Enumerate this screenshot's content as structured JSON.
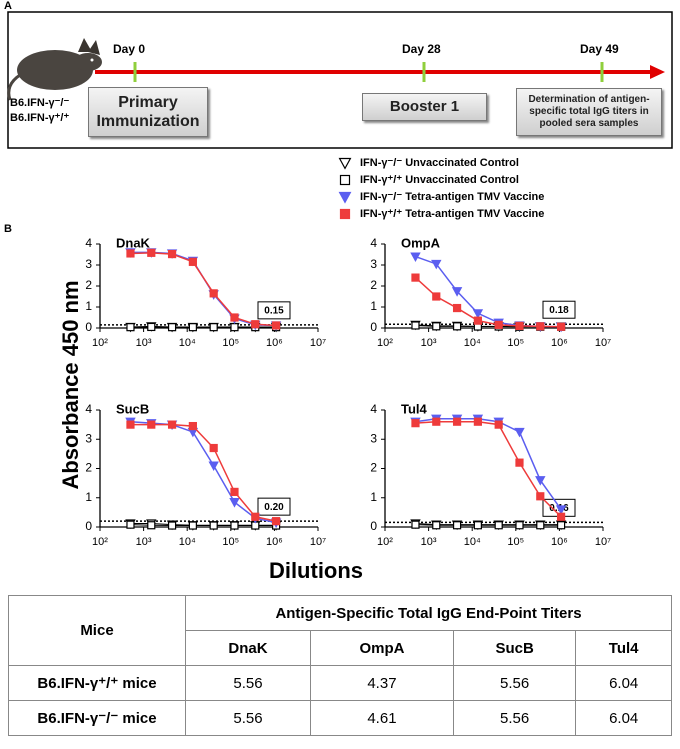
{
  "panel_a": {
    "label": "A",
    "mouse_labels": [
      "B6.IFN-γ⁻/⁻",
      "B6.IFN-γ⁺/⁺"
    ],
    "timepoints": [
      {
        "day": "Day 0",
        "event": "Primary Immunization"
      },
      {
        "day": "Day 28",
        "event": "Booster 1"
      },
      {
        "day": "Day 49",
        "event": "Determination of antigen-specific total IgG titers in pooled sera samples"
      }
    ]
  },
  "panel_b": {
    "label": "B"
  },
  "legend": [
    {
      "name": "IFN-γ⁻/⁻  Unvaccinated Control",
      "color": "#000000",
      "marker": "triangle-down",
      "filled": false
    },
    {
      "name": "IFN-γ⁺/⁺  Unvaccinated Control",
      "color": "#000000",
      "marker": "square",
      "filled": false
    },
    {
      "name": "IFN-γ⁻/⁻  Tetra-antigen TMV Vaccine",
      "color": "#5b5ef0",
      "marker": "triangle-down",
      "filled": true
    },
    {
      "name": "IFN-γ⁺/⁺  Tetra-antigen TMV Vaccine",
      "color": "#ee3b3b",
      "marker": "square",
      "filled": true
    }
  ],
  "ylabel": "Absorbance 450 nm",
  "xlabel": "Dilutions",
  "chart_data": [
    {
      "type": "line",
      "title": "DnaK",
      "xscale": "log",
      "x": [
        500,
        1500,
        4500,
        13500,
        40500,
        121500,
        364500,
        1093500
      ],
      "xlim": [
        100,
        10000000
      ],
      "xticks": [
        {
          "value": 100,
          "label": "10²"
        },
        {
          "value": 1000,
          "label": "10³"
        },
        {
          "value": 10000,
          "label": "10⁴"
        },
        {
          "value": 100000,
          "label": "10⁵"
        },
        {
          "value": 1000000,
          "label": "10⁶"
        },
        {
          "value": 10000000,
          "label": "10⁷"
        }
      ],
      "ylim": [
        0,
        4
      ],
      "yticks": [
        0,
        1,
        2,
        3,
        4
      ],
      "cutoff": {
        "value": 0.15,
        "label": "0.15"
      },
      "series": [
        {
          "values": [
            0.05,
            0.08,
            0.05,
            0.05,
            0.05,
            0.05,
            0.05,
            0.05
          ]
        },
        {
          "values": [
            0.04,
            0.05,
            0.04,
            0.04,
            0.04,
            0.04,
            0.04,
            0.04
          ]
        },
        {
          "values": [
            3.6,
            3.6,
            3.55,
            3.2,
            1.6,
            0.45,
            0.15,
            0.12
          ]
        },
        {
          "values": [
            3.55,
            3.58,
            3.52,
            3.15,
            1.65,
            0.5,
            0.18,
            0.12
          ]
        }
      ]
    },
    {
      "type": "line",
      "title": "OmpA",
      "xscale": "log",
      "x": [
        500,
        1500,
        4500,
        13500,
        40500,
        121500,
        364500,
        1093500
      ],
      "xlim": [
        100,
        10000000
      ],
      "xticks": [
        {
          "value": 100,
          "label": "10²"
        },
        {
          "value": 1000,
          "label": "10³"
        },
        {
          "value": 10000,
          "label": "10⁴"
        },
        {
          "value": 100000,
          "label": "10⁵"
        },
        {
          "value": 1000000,
          "label": "10⁶"
        },
        {
          "value": 10000000,
          "label": "10⁷"
        }
      ],
      "ylim": [
        0,
        4
      ],
      "yticks": [
        0,
        1,
        2,
        3,
        4
      ],
      "cutoff": {
        "value": 0.18,
        "label": "0.18"
      },
      "series": [
        {
          "values": [
            0.15,
            0.1,
            0.1,
            0.08,
            0.08,
            0.07,
            0.07,
            0.07
          ]
        },
        {
          "values": [
            0.12,
            0.08,
            0.08,
            0.07,
            0.07,
            0.06,
            0.06,
            0.06
          ]
        },
        {
          "values": [
            3.4,
            3.05,
            1.75,
            0.7,
            0.25,
            0.12,
            0.08,
            0.06
          ]
        },
        {
          "values": [
            2.4,
            1.5,
            0.95,
            0.35,
            0.15,
            0.1,
            0.08,
            0.06
          ]
        }
      ]
    },
    {
      "type": "line",
      "title": "SucB",
      "xscale": "log",
      "x": [
        500,
        1500,
        4500,
        13500,
        40500,
        121500,
        364500,
        1093500
      ],
      "xlim": [
        100,
        10000000
      ],
      "xticks": [
        {
          "value": 100,
          "label": "10²"
        },
        {
          "value": 1000,
          "label": "10³"
        },
        {
          "value": 10000,
          "label": "10⁴"
        },
        {
          "value": 100000,
          "label": "10⁵"
        },
        {
          "value": 1000000,
          "label": "10⁶"
        },
        {
          "value": 10000000,
          "label": "10⁷"
        }
      ],
      "ylim": [
        0,
        4
      ],
      "yticks": [
        0,
        1,
        2,
        3,
        4
      ],
      "cutoff": {
        "value": 0.2,
        "label": "0.20"
      },
      "series": [
        {
          "values": [
            0.12,
            0.12,
            0.08,
            0.06,
            0.06,
            0.06,
            0.06,
            0.06
          ]
        },
        {
          "values": [
            0.08,
            0.06,
            0.05,
            0.05,
            0.05,
            0.05,
            0.05,
            0.05
          ]
        },
        {
          "values": [
            3.6,
            3.55,
            3.5,
            3.25,
            2.1,
            0.85,
            0.3,
            0.15
          ]
        },
        {
          "values": [
            3.5,
            3.5,
            3.5,
            3.45,
            2.7,
            1.2,
            0.35,
            0.2
          ]
        }
      ]
    },
    {
      "type": "line",
      "title": "Tul4",
      "xscale": "log",
      "x": [
        500,
        1500,
        4500,
        13500,
        40500,
        121500,
        364500,
        1093500
      ],
      "xlim": [
        100,
        10000000
      ],
      "xticks": [
        {
          "value": 100,
          "label": "10²"
        },
        {
          "value": 1000,
          "label": "10³"
        },
        {
          "value": 10000,
          "label": "10⁴"
        },
        {
          "value": 100000,
          "label": "10⁵"
        },
        {
          "value": 1000000,
          "label": "10⁶"
        },
        {
          "value": 10000000,
          "label": "10⁷"
        }
      ],
      "ylim": [
        0,
        4
      ],
      "yticks": [
        0,
        1,
        2,
        3,
        4
      ],
      "cutoff": {
        "value": 0.16,
        "label": "0.16"
      },
      "series": [
        {
          "values": [
            0.12,
            0.08,
            0.08,
            0.08,
            0.08,
            0.08,
            0.08,
            0.08
          ]
        },
        {
          "values": [
            0.08,
            0.06,
            0.06,
            0.06,
            0.06,
            0.06,
            0.06,
            0.06
          ]
        },
        {
          "values": [
            3.6,
            3.7,
            3.7,
            3.7,
            3.6,
            3.25,
            1.6,
            0.6
          ]
        },
        {
          "values": [
            3.55,
            3.6,
            3.6,
            3.6,
            3.5,
            2.2,
            1.05,
            0.35
          ]
        }
      ]
    }
  ],
  "table": {
    "header_mice": "Mice",
    "header_group": "Antigen-Specific Total IgG End-Point Titers",
    "columns": [
      "DnaK",
      "OmpA",
      "SucB",
      "Tul4"
    ],
    "rows": [
      {
        "label": "B6.IFN-γ⁺/⁺ mice",
        "values": [
          5.56,
          4.37,
          5.56,
          6.04
        ]
      },
      {
        "label": "B6.IFN-γ⁻/⁻ mice",
        "values": [
          5.56,
          4.61,
          5.56,
          6.04
        ]
      }
    ]
  }
}
